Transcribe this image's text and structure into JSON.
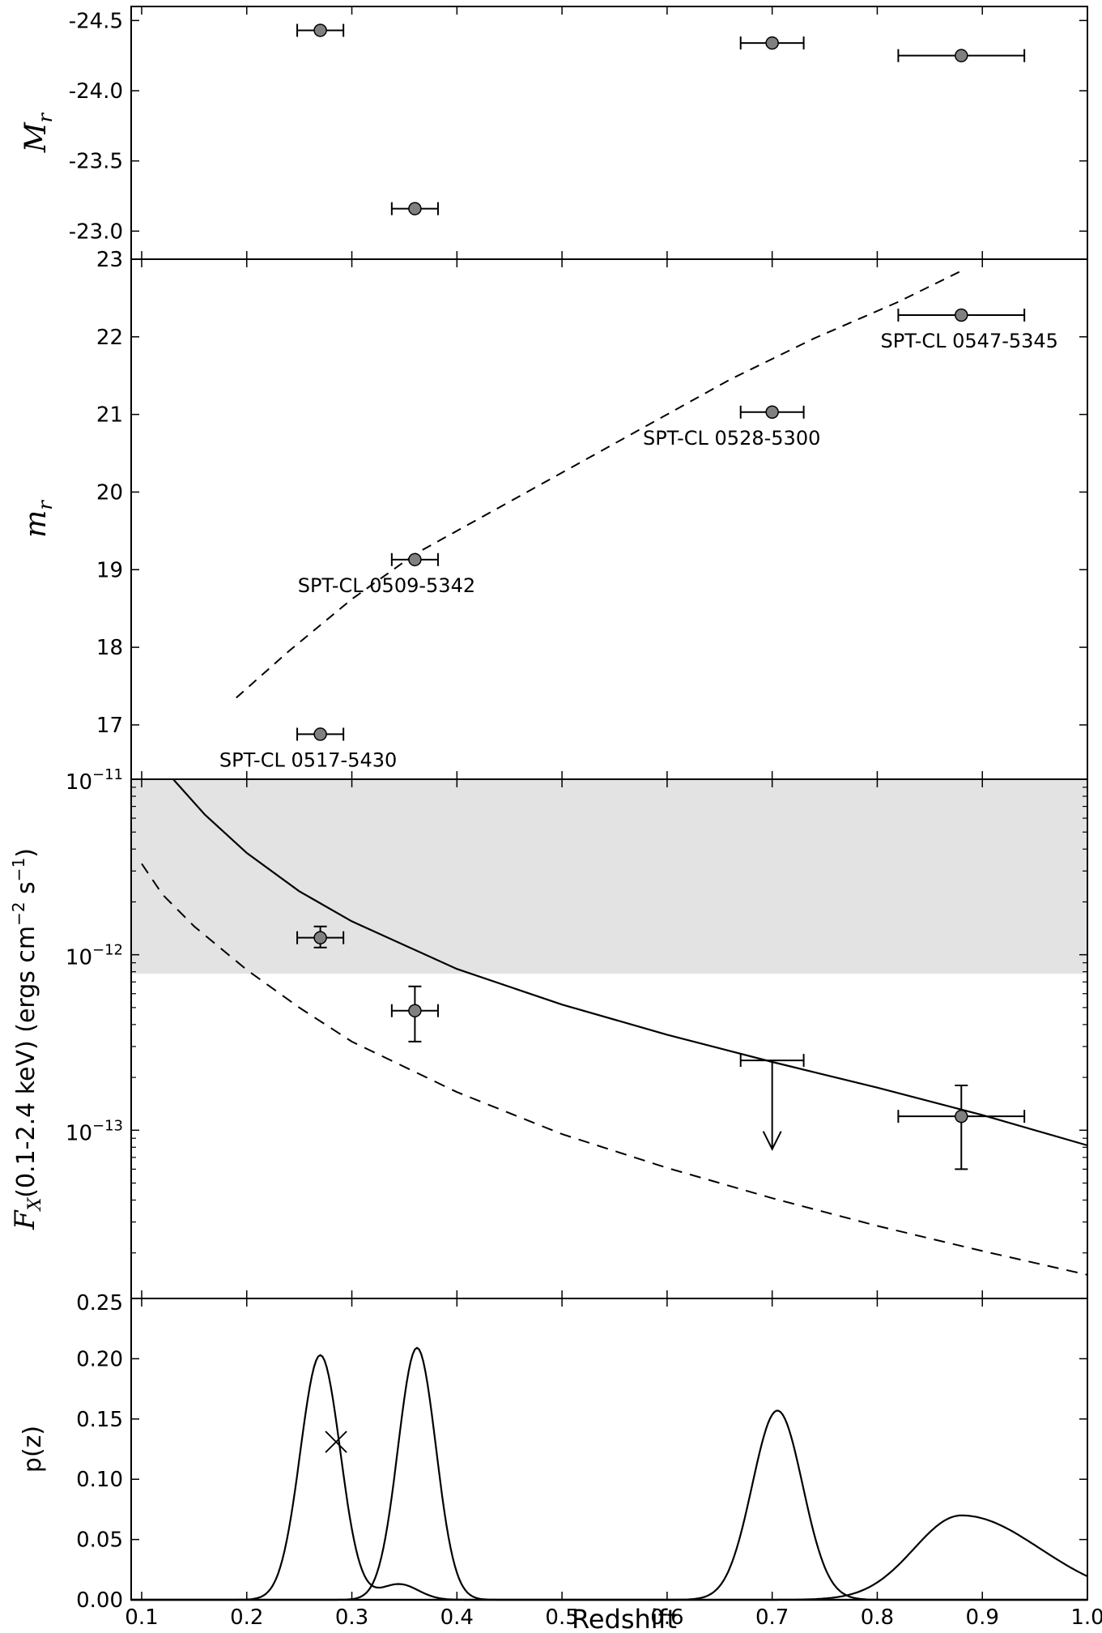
{
  "chart_data": [
    {
      "type": "scatter",
      "panel": "absolute-magnitude",
      "ylabel": "M_r",
      "ylim": [
        -22.8,
        -24.6
      ],
      "y_inverted": true,
      "yticks": [
        "-24.5",
        "-24.0",
        "-23.5",
        "-23.0"
      ],
      "points": [
        {
          "x": 0.27,
          "y": -24.43,
          "xerr": 0.022
        },
        {
          "x": 0.36,
          "y": -23.16,
          "xerr": 0.022
        },
        {
          "x": 0.7,
          "y": -24.34,
          "xerr": 0.03
        },
        {
          "x": 0.88,
          "y": -24.25,
          "xerr": 0.06
        }
      ]
    },
    {
      "type": "scatter",
      "panel": "apparent-magnitude",
      "ylabel": "m_r",
      "ylim": [
        16.3,
        23.0
      ],
      "yticks": [
        "17",
        "18",
        "19",
        "20",
        "21",
        "22",
        "23"
      ],
      "points": [
        {
          "x": 0.27,
          "y": 16.88,
          "xerr": 0.022,
          "label": "SPT-CL 0517-5430"
        },
        {
          "x": 0.36,
          "y": 19.13,
          "xerr": 0.022,
          "label": "SPT-CL 0509-5342"
        },
        {
          "x": 0.7,
          "y": 21.03,
          "xerr": 0.03,
          "label": "SPT-CL 0528-5300"
        },
        {
          "x": 0.88,
          "y": 22.28,
          "xerr": 0.06,
          "label": "SPT-CL 0547-5345"
        }
      ],
      "dashed_curve": {
        "x": [
          0.19,
          0.24,
          0.3,
          0.36,
          0.42,
          0.5,
          0.58,
          0.66,
          0.74,
          0.82,
          0.88
        ],
        "y": [
          17.35,
          17.95,
          18.62,
          19.2,
          19.65,
          20.25,
          20.85,
          21.45,
          21.98,
          22.45,
          22.85
        ]
      }
    },
    {
      "type": "scatter",
      "panel": "xray-flux",
      "ylabel": "F_X(0.1-2.4 keV) (ergs cm^-2 s^-1)",
      "yscale": "log",
      "ylim": [
        1.1e-14,
        1e-11
      ],
      "ytick_labels": [
        {
          "base": "10",
          "exp": "−11"
        },
        {
          "base": "10",
          "exp": "−12"
        },
        {
          "base": "10",
          "exp": "−13"
        }
      ],
      "shaded_band": {
        "y_from": 7.8e-13,
        "y_to": 1e-11,
        "color": "#e3e3e3"
      },
      "points": [
        {
          "x": 0.27,
          "y": 1.25e-12,
          "xerr": 0.022,
          "yerr_low": 1.1e-12,
          "yerr_high": 1.45e-12
        },
        {
          "x": 0.36,
          "y": 4.8e-13,
          "xerr": 0.022,
          "yerr_low": 3.2e-13,
          "yerr_high": 6.6e-13
        },
        {
          "x": 0.88,
          "y": 1.2e-13,
          "xerr": 0.06,
          "yerr_low": 6e-14,
          "yerr_high": 1.8e-13
        }
      ],
      "upper_limits": [
        {
          "x": 0.7,
          "y": 2.5e-13,
          "xerr": 0.03,
          "arrow_to": 7.8e-14
        }
      ],
      "solid_curve": {
        "x": [
          0.13,
          0.16,
          0.2,
          0.25,
          0.3,
          0.4,
          0.5,
          0.6,
          0.7,
          0.8,
          0.9,
          1.0
        ],
        "y": [
          1e-11,
          6.3e-12,
          3.8e-12,
          2.3e-12,
          1.55e-12,
          8.3e-13,
          5.2e-13,
          3.5e-13,
          2.45e-13,
          1.75e-13,
          1.22e-13,
          8.2e-14
        ]
      },
      "dashed_curve": {
        "x": [
          0.1,
          0.12,
          0.15,
          0.2,
          0.25,
          0.3,
          0.4,
          0.5,
          0.6,
          0.7,
          0.8,
          0.9,
          1.0
        ],
        "y": [
          3.3e-12,
          2.2e-12,
          1.45e-12,
          8.2e-13,
          5e-13,
          3.2e-13,
          1.65e-13,
          9.5e-14,
          6.1e-14,
          4.1e-14,
          2.85e-14,
          2.05e-14,
          1.5e-14
        ]
      }
    },
    {
      "type": "line",
      "panel": "redshift-pdf",
      "ylabel": "p(z)",
      "xlabel": "Redshift",
      "xlim": [
        0.09,
        1.0
      ],
      "ylim": [
        0.0,
        0.25
      ],
      "yticks": [
        "0.00",
        "0.05",
        "0.10",
        "0.15",
        "0.20",
        "0.25"
      ],
      "xticks": [
        "0.1",
        "0.2",
        "0.3",
        "0.4",
        "0.5",
        "0.6",
        "0.7",
        "0.8",
        "0.9",
        "1.0"
      ],
      "series": [
        {
          "components": [
            {
              "amp": 0.203,
              "mu": 0.27,
              "sigma": 0.019
            },
            {
              "amp": 0.013,
              "mu": 0.345,
              "sigma": 0.018
            }
          ]
        },
        {
          "components": [
            {
              "amp": 0.209,
              "mu": 0.362,
              "sigma": 0.018
            }
          ]
        },
        {
          "components": [
            {
              "amp": 0.157,
              "mu": 0.705,
              "sigma": 0.024
            }
          ]
        },
        {
          "components": [
            {
              "amp": 0.07,
              "mu": 0.88,
              "sigma": 0.045,
              "sigma_right": 0.075
            }
          ]
        }
      ],
      "marker": {
        "shape": "x",
        "x": 0.285,
        "y": 0.131
      }
    }
  ]
}
